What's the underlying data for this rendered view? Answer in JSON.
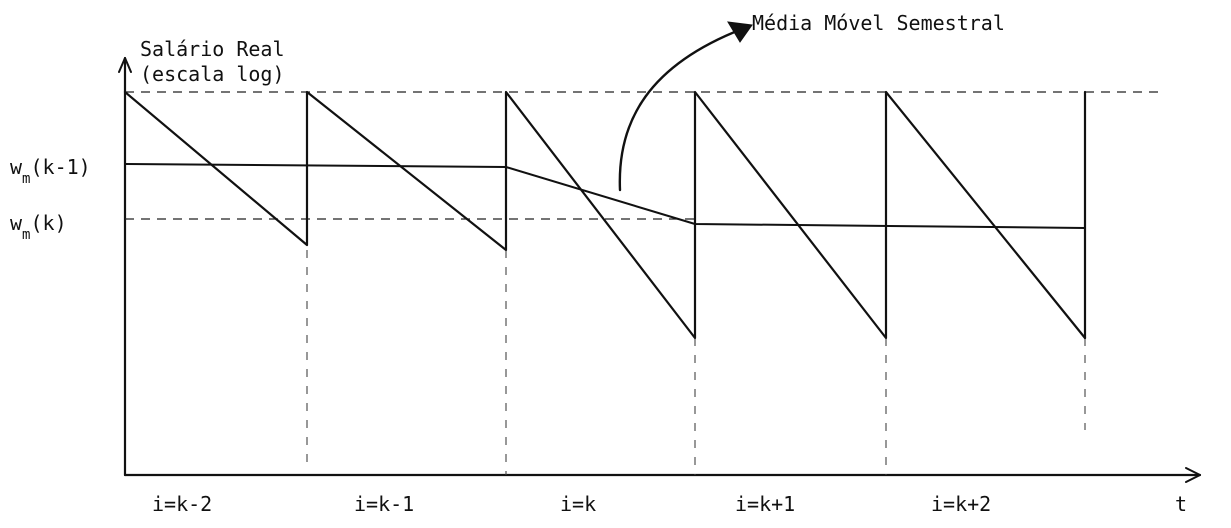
{
  "y_axis_label": {
    "line1": "Salário Real",
    "line2": "(escala log)"
  },
  "x_axis_label": "t",
  "y_tick_labels": {
    "upper": {
      "main": "w",
      "sub": "m",
      "arg": "(k-1)"
    },
    "lower": {
      "main": "w",
      "sub": "m",
      "arg": "(k)"
    }
  },
  "annotation": "Média Móvel Semestral",
  "periods": [
    "i=k-2",
    "i=k-1",
    "i=k",
    "i=k+1",
    "i=k+2"
  ],
  "colors": {
    "ink": "#111111",
    "background": "#ffffff"
  }
}
